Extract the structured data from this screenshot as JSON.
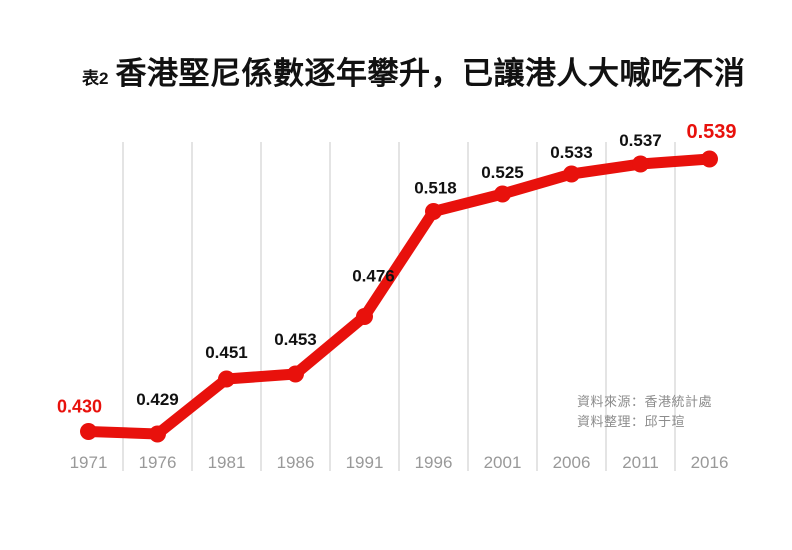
{
  "header": {
    "table_label": "表2",
    "title": "香港堅尼係數逐年攀升，已讓港人大喊吃不消"
  },
  "source": {
    "line1": "資料來源：香港統計處",
    "line2": "資料整理：邱于瑄"
  },
  "colors": {
    "line": "#e8110c",
    "value_label": "#111111",
    "emphasized_label": "#e8110c",
    "gridline": "#c9c9c9",
    "axis_tick_label": "#999999",
    "source_text": "#8c8c8c",
    "background": "#ffffff"
  },
  "chart_data": {
    "type": "line",
    "title": "香港堅尼係數逐年攀升，已讓港人大喊吃不消",
    "categories": [
      "1971",
      "1976",
      "1981",
      "1986",
      "1991",
      "1996",
      "2001",
      "2006",
      "2011",
      "2016"
    ],
    "values": [
      0.43,
      0.429,
      0.451,
      0.453,
      0.476,
      0.518,
      0.525,
      0.533,
      0.537,
      0.539
    ],
    "point_labels": [
      "0.430",
      "0.429",
      "0.451",
      "0.453",
      "0.476",
      "0.518",
      "0.525",
      "0.533",
      "0.537",
      "0.539"
    ],
    "emphasized_label_indices": [
      0,
      9
    ],
    "xlabel": "",
    "ylabel": "",
    "ylim": [
      0.42,
      0.56
    ],
    "grid": "vertical-between-categories",
    "legend": "none",
    "line_color": "#e8110c",
    "marker": "circle"
  }
}
